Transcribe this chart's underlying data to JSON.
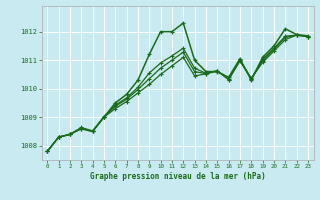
{
  "title": "Graphe pression niveau de la mer (hPa)",
  "bg_color": "#c8eaf0",
  "grid_color": "#ffffff",
  "line_color": "#1a6b1a",
  "xlim": [
    -0.5,
    23.5
  ],
  "ylim": [
    1007.5,
    1012.9
  ],
  "yticks": [
    1008,
    1009,
    1010,
    1011,
    1012
  ],
  "xticks": [
    0,
    1,
    2,
    3,
    4,
    5,
    6,
    7,
    8,
    9,
    10,
    11,
    12,
    13,
    14,
    15,
    16,
    17,
    18,
    19,
    20,
    21,
    22,
    23
  ],
  "main_y": [
    1007.8,
    1008.3,
    1008.4,
    1008.6,
    1008.5,
    1009.0,
    1009.5,
    1009.8,
    1010.3,
    1011.2,
    1012.0,
    1012.0,
    1012.3,
    1011.0,
    1010.6,
    1010.6,
    1010.4,
    1011.05,
    1010.3,
    1011.1,
    1011.5,
    1012.1,
    1011.9,
    1011.85
  ],
  "line2_y": [
    1007.8,
    1008.3,
    1008.4,
    1008.6,
    1008.5,
    1009.0,
    1009.3,
    1009.55,
    1009.85,
    1010.15,
    1010.5,
    1010.8,
    1011.1,
    1010.45,
    1010.52,
    1010.62,
    1010.33,
    1010.97,
    1010.36,
    1010.92,
    1011.32,
    1011.72,
    1011.88,
    1011.82
  ],
  "line3_y": [
    1007.8,
    1008.3,
    1008.4,
    1008.62,
    1008.51,
    1009.01,
    1009.38,
    1009.63,
    1009.97,
    1010.35,
    1010.72,
    1011.0,
    1011.28,
    1010.6,
    1010.53,
    1010.63,
    1010.32,
    1010.99,
    1010.35,
    1010.98,
    1011.38,
    1011.8,
    1011.88,
    1011.83
  ],
  "line4_y": [
    1007.8,
    1008.3,
    1008.4,
    1008.64,
    1008.52,
    1009.02,
    1009.42,
    1009.68,
    1010.05,
    1010.55,
    1010.9,
    1011.15,
    1011.42,
    1010.72,
    1010.54,
    1010.63,
    1010.32,
    1011.01,
    1010.35,
    1011.03,
    1011.42,
    1011.84,
    1011.88,
    1011.83
  ]
}
